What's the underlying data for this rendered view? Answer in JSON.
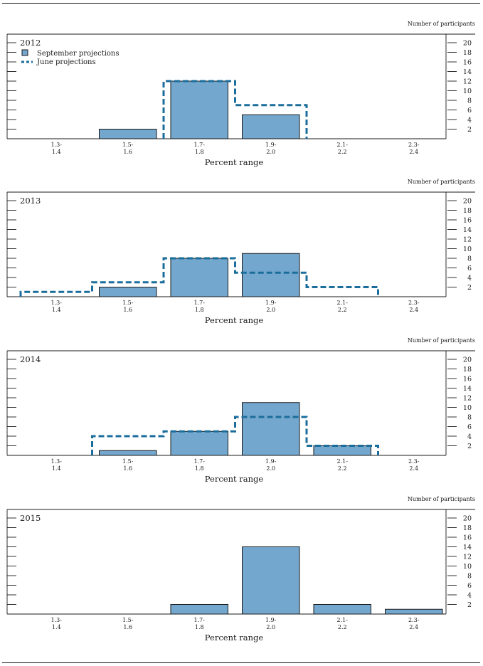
{
  "chart_data": [
    {
      "type": "bar",
      "title": "2012",
      "categories": [
        "1.3-\n1.4",
        "1.5-\n1.6",
        "1.7-\n1.8",
        "1.9-\n2.0",
        "2.1-\n2.2",
        "2.3-\n2.4"
      ],
      "series": [
        {
          "name": "September projections",
          "style": "bar",
          "values": [
            0,
            2,
            12,
            5,
            0,
            0
          ]
        },
        {
          "name": "June projections",
          "style": "dashed-step",
          "values": [
            0,
            0,
            12,
            7,
            0,
            0
          ]
        }
      ],
      "xlabel": "Percent range",
      "ylabel": "Number of participants",
      "ylim": [
        0,
        20
      ],
      "yticks": [
        2,
        4,
        6,
        8,
        10,
        12,
        14,
        16,
        18,
        20
      ],
      "legend_placement": "top-left"
    },
    {
      "type": "bar",
      "title": "2013",
      "categories": [
        "1.3-\n1.4",
        "1.5-\n1.6",
        "1.7-\n1.8",
        "1.9-\n2.0",
        "2.1-\n2.2",
        "2.3-\n2.4"
      ],
      "series": [
        {
          "name": "September projections",
          "style": "bar",
          "values": [
            0,
            2,
            8,
            9,
            0,
            0
          ]
        },
        {
          "name": "June projections",
          "style": "dashed-step",
          "values": [
            1,
            3,
            8,
            5,
            2,
            0
          ]
        }
      ],
      "xlabel": "Percent range",
      "ylabel": "Number of participants",
      "ylim": [
        0,
        20
      ],
      "yticks": [
        2,
        4,
        6,
        8,
        10,
        12,
        14,
        16,
        18,
        20
      ]
    },
    {
      "type": "bar",
      "title": "2014",
      "categories": [
        "1.3-\n1.4",
        "1.5-\n1.6",
        "1.7-\n1.8",
        "1.9-\n2.0",
        "2.1-\n2.2",
        "2.3-\n2.4"
      ],
      "series": [
        {
          "name": "September projections",
          "style": "bar",
          "values": [
            0,
            1,
            5,
            11,
            2,
            0
          ]
        },
        {
          "name": "June projections",
          "style": "dashed-step",
          "values": [
            0,
            4,
            5,
            8,
            2,
            0
          ]
        }
      ],
      "xlabel": "Percent range",
      "ylabel": "Number of participants",
      "ylim": [
        0,
        20
      ],
      "yticks": [
        2,
        4,
        6,
        8,
        10,
        12,
        14,
        16,
        18,
        20
      ]
    },
    {
      "type": "bar",
      "title": "2015",
      "categories": [
        "1.3-\n1.4",
        "1.5-\n1.6",
        "1.7-\n1.8",
        "1.9-\n2.0",
        "2.1-\n2.2",
        "2.3-\n2.4"
      ],
      "series": [
        {
          "name": "September projections",
          "style": "bar",
          "values": [
            0,
            0,
            2,
            14,
            2,
            1
          ]
        }
      ],
      "xlabel": "Percent range",
      "ylabel": "Number of participants",
      "ylim": [
        0,
        20
      ],
      "yticks": [
        2,
        4,
        6,
        8,
        10,
        12,
        14,
        16,
        18,
        20
      ]
    }
  ],
  "colors": {
    "bar_fill": "#74a7cd",
    "bar_stroke": "#1a1a1a",
    "june_dashed": "#1b6e9c",
    "axis": "#1a1a1a"
  }
}
